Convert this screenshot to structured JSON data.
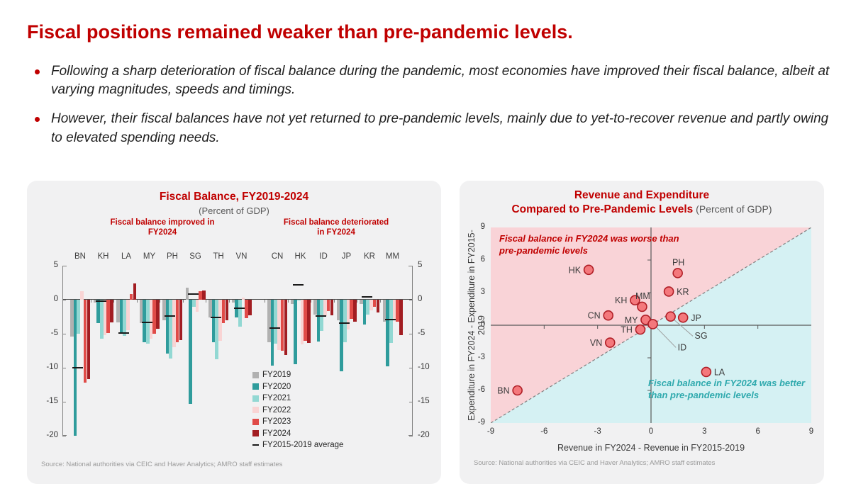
{
  "page": {
    "title": "Fiscal positions remained weaker than pre-pandemic levels.",
    "bullets": [
      "Following a sharp deterioration of fiscal balance during the pandemic, most economies have improved their fiscal balance, albeit at varying magnitudes, speeds and timings.",
      "However, their fiscal balances have not yet returned to pre-pandemic levels, mainly due to yet-to-recover revenue and partly owing to elevated spending needs."
    ]
  },
  "left_panel": {
    "source": "Source: National authorities via CEIC and Haver Analytics; AMRO staff estimates"
  },
  "right_panel": {
    "title_line1": "Revenue and Expenditure",
    "title_line2": "Compared to Pre-Pandemic Levels",
    "subtitle_inline": " (Percent of GDP)",
    "source": "Source: National authorities via CEIC and Haver Analytics; AMRO staff estimates"
  },
  "chart_data": [
    {
      "type": "bar",
      "title": "Fiscal Balance, FY2019-2024",
      "subtitle": "(Percent of GDP)",
      "ylim": [
        -20,
        5
      ],
      "yticks": [
        5,
        0,
        -5,
        -10,
        -15,
        -20
      ],
      "grid": false,
      "legend_position": "inside-lower-right",
      "groups": [
        {
          "label": "Fiscal balance improved in FY2024",
          "categories": [
            "BN",
            "KH",
            "LA",
            "MY",
            "PH",
            "SG",
            "TH",
            "VN"
          ]
        },
        {
          "label": "Fiscal balance deteriorated in FY2024",
          "categories": [
            "CN",
            "HK",
            "ID",
            "JP",
            "KR",
            "MM"
          ]
        }
      ],
      "series": [
        {
          "name": "FY2019",
          "color": "#b1b1b1"
        },
        {
          "name": "FY2020",
          "color": "#2F9C9C"
        },
        {
          "name": "FY2021",
          "color": "#92D8D3"
        },
        {
          "name": "FY2022",
          "color": "#F9D4D4"
        },
        {
          "name": "FY2023",
          "color": "#E04B48"
        },
        {
          "name": "FY2024",
          "color": "#A21D22"
        }
      ],
      "values": {
        "BN": [
          -5.4,
          -20.0,
          -5.0,
          1.2,
          -12.2,
          -11.7
        ],
        "KH": [
          -0.4,
          -3.4,
          -5.7,
          -5.2,
          -4.9,
          -3.3
        ],
        "LA": [
          -3.3,
          -4.8,
          -5.3,
          -4.5,
          0.8,
          2.4
        ],
        "MY": [
          -3.4,
          -6.3,
          -6.5,
          -5.7,
          -5.0,
          -4.3
        ],
        "PH": [
          -3.0,
          -7.9,
          -8.6,
          -7.0,
          -6.2,
          -5.9
        ],
        "SG": [
          1.8,
          -15.3,
          -1.0,
          -1.8,
          1.3,
          1.4
        ],
        "TH": [
          -2.6,
          -6.3,
          -8.8,
          -6.0,
          -3.4,
          -3.0
        ],
        "VN": [
          -0.4,
          -2.6,
          -4.0,
          0.3,
          -2.7,
          -2.3
        ],
        "CN": [
          -6.2,
          -9.7,
          -6.5,
          -7.4,
          -7.5,
          -8.1
        ],
        "HK": [
          -0.6,
          -9.5,
          0.0,
          -6.6,
          -6.0,
          -6.4
        ],
        "ID": [
          -2.2,
          -6.1,
          -4.6,
          -2.4,
          -1.7,
          -2.3
        ],
        "JP": [
          -3.0,
          -10.5,
          -6.3,
          -4.4,
          -2.8,
          -3.2
        ],
        "KR": [
          -0.6,
          -3.6,
          -2.2,
          -1.6,
          -1.0,
          -1.9
        ],
        "MM": [
          -3.2,
          -9.8,
          -6.4,
          -2.8,
          -3.2,
          -5.2
        ]
      },
      "averages": {
        "BN": -10.0,
        "KH": -0.2,
        "LA": -4.9,
        "MY": -3.3,
        "PH": -2.4,
        "SG": 0.8,
        "TH": -2.6,
        "VN": -1.3,
        "CN": -4.2,
        "HK": 2.2,
        "ID": -2.4,
        "JP": -3.4,
        "KR": 0.4,
        "MM": -2.9
      },
      "average_label": "FY2015-2019 average"
    },
    {
      "type": "scatter",
      "title": "Revenue and Expenditure Compared to Pre-Pandemic Levels",
      "subtitle": "(Percent of GDP)",
      "xlabel": "Revenue in FY2024 - Revenue in FY2015-2019",
      "ylabel": "Expenditure in FY2024 - Expenditure in FY2015-2019",
      "xlim": [
        -9,
        9
      ],
      "ylim": [
        -9,
        9
      ],
      "xticks": [
        -9,
        -6,
        -3,
        0,
        3,
        6,
        9
      ],
      "yticks": [
        9,
        6,
        3,
        0,
        -3,
        -6,
        -9
      ],
      "diagonal_line": "dashed from (-9,-9) to (9,9)",
      "region_colors": {
        "worse_above_diagonal": "#F9D3D7",
        "better_below_diagonal": "#D5F1F3"
      },
      "marker": {
        "fill": "#F4787C",
        "stroke": "#B01E26"
      },
      "annotations": {
        "worse": "Fiscal balance in FY2024 was worse than pre-pandemic levels",
        "better": "Fiscal balance in FY2024 was better than pre-pandemic levels"
      },
      "points": [
        {
          "code": "HK",
          "x": -3.5,
          "y": 5.1,
          "side": "left"
        },
        {
          "code": "PH",
          "x": 1.5,
          "y": 4.8,
          "side": "above"
        },
        {
          "code": "KR",
          "x": 1.0,
          "y": 3.1,
          "side": "right"
        },
        {
          "code": "KH",
          "x": -0.9,
          "y": 2.3,
          "side": "left"
        },
        {
          "code": "MM",
          "x": -0.5,
          "y": 1.7,
          "side": "above"
        },
        {
          "code": "CN",
          "x": -2.4,
          "y": 0.9,
          "side": "left"
        },
        {
          "code": "MY",
          "x": -0.3,
          "y": 0.5,
          "side": "left"
        },
        {
          "code": "SG",
          "x": 1.1,
          "y": 0.8,
          "side": "custom",
          "lx": 2.45,
          "ly": -1.25,
          "leader": [
            [
              1.3,
              0.5
            ],
            [
              2.35,
              -1.0
            ]
          ]
        },
        {
          "code": "JP",
          "x": 1.8,
          "y": 0.7,
          "side": "right"
        },
        {
          "code": "ID",
          "x": 0.1,
          "y": 0.1,
          "side": "custom",
          "lx": 1.5,
          "ly": -2.3,
          "leader": [
            [
              0.3,
              -0.2
            ],
            [
              1.4,
              -2.05
            ]
          ]
        },
        {
          "code": "TH",
          "x": -0.6,
          "y": -0.4,
          "side": "left"
        },
        {
          "code": "VN",
          "x": -2.3,
          "y": -1.6,
          "side": "left"
        },
        {
          "code": "LA",
          "x": 3.1,
          "y": -4.3,
          "side": "right"
        },
        {
          "code": "BN",
          "x": -7.5,
          "y": -6.0,
          "side": "left"
        }
      ]
    }
  ]
}
